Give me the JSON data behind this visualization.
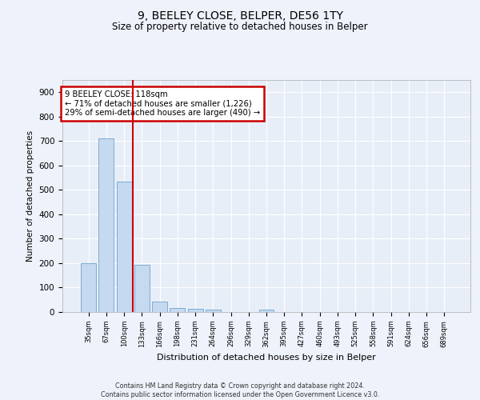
{
  "title_line1": "9, BEELEY CLOSE, BELPER, DE56 1TY",
  "title_line2": "Size of property relative to detached houses in Belper",
  "xlabel": "Distribution of detached houses by size in Belper",
  "ylabel": "Number of detached properties",
  "categories": [
    "35sqm",
    "67sqm",
    "100sqm",
    "133sqm",
    "166sqm",
    "198sqm",
    "231sqm",
    "264sqm",
    "296sqm",
    "329sqm",
    "362sqm",
    "395sqm",
    "427sqm",
    "460sqm",
    "493sqm",
    "525sqm",
    "558sqm",
    "591sqm",
    "624sqm",
    "656sqm",
    "689sqm"
  ],
  "values": [
    200,
    710,
    535,
    192,
    44,
    18,
    12,
    9,
    0,
    0,
    9,
    0,
    0,
    0,
    0,
    0,
    0,
    0,
    0,
    0,
    0
  ],
  "bar_color": "#c5d9f0",
  "bar_edge_color": "#7aadd4",
  "vline_x": 2.5,
  "vline_color": "#cc0000",
  "annotation_text": "9 BEELEY CLOSE: 118sqm\n← 71% of detached houses are smaller (1,226)\n29% of semi-detached houses are larger (490) →",
  "annotation_box_color": "#cc0000",
  "ylim": [
    0,
    950
  ],
  "yticks": [
    0,
    100,
    200,
    300,
    400,
    500,
    600,
    700,
    800,
    900
  ],
  "footnote": "Contains HM Land Registry data © Crown copyright and database right 2024.\nContains public sector information licensed under the Open Government Licence v3.0.",
  "bg_color": "#eef2fb",
  "plot_bg_color": "#e8eef8",
  "grid_color": "#ffffff"
}
